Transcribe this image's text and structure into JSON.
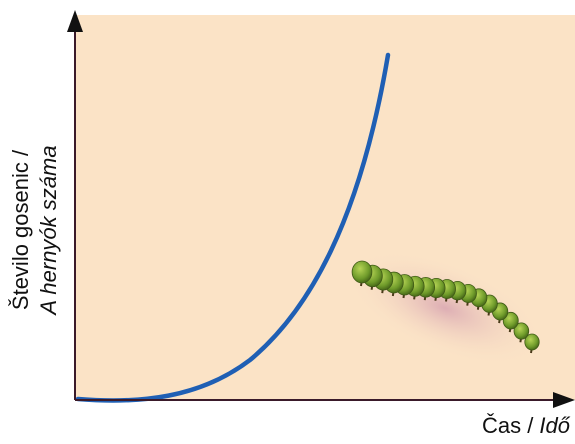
{
  "y_axis_label": {
    "line1": "Število gosenic /",
    "line2": "A hernyók száma"
  },
  "x_axis_label": {
    "text": "Čas /",
    "italic": "Idő"
  }
}
